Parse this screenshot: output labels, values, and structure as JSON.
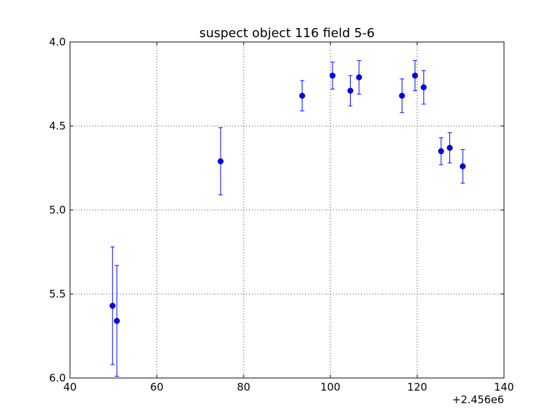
{
  "chart_data": {
    "type": "scatter",
    "title": "suspect object 116 field 5-6",
    "xlabel": "",
    "ylabel": "",
    "x_offset_label": "+2.456e6",
    "xlim": [
      40,
      140
    ],
    "ylim": [
      6.0,
      4.0
    ],
    "y_inverted": true,
    "grid": true,
    "x_ticks": [
      "40",
      "60",
      "80",
      "100",
      "120",
      "140"
    ],
    "y_ticks": [
      "4.0",
      "4.5",
      "5.0",
      "5.5",
      "6.0"
    ],
    "marker_color": "#0000ff",
    "points": [
      {
        "x": 49.8,
        "y": 5.57,
        "err": 0.35
      },
      {
        "x": 50.8,
        "y": 5.66,
        "err": 0.33
      },
      {
        "x": 74.7,
        "y": 4.71,
        "err": 0.2
      },
      {
        "x": 93.5,
        "y": 4.32,
        "err": 0.09
      },
      {
        "x": 100.5,
        "y": 4.2,
        "err": 0.08
      },
      {
        "x": 104.6,
        "y": 4.29,
        "err": 0.09
      },
      {
        "x": 106.6,
        "y": 4.21,
        "err": 0.1
      },
      {
        "x": 116.5,
        "y": 4.32,
        "err": 0.1
      },
      {
        "x": 119.5,
        "y": 4.2,
        "err": 0.09
      },
      {
        "x": 121.5,
        "y": 4.27,
        "err": 0.1
      },
      {
        "x": 125.5,
        "y": 4.65,
        "err": 0.08
      },
      {
        "x": 127.5,
        "y": 4.63,
        "err": 0.09
      },
      {
        "x": 130.5,
        "y": 4.74,
        "err": 0.1
      }
    ]
  }
}
